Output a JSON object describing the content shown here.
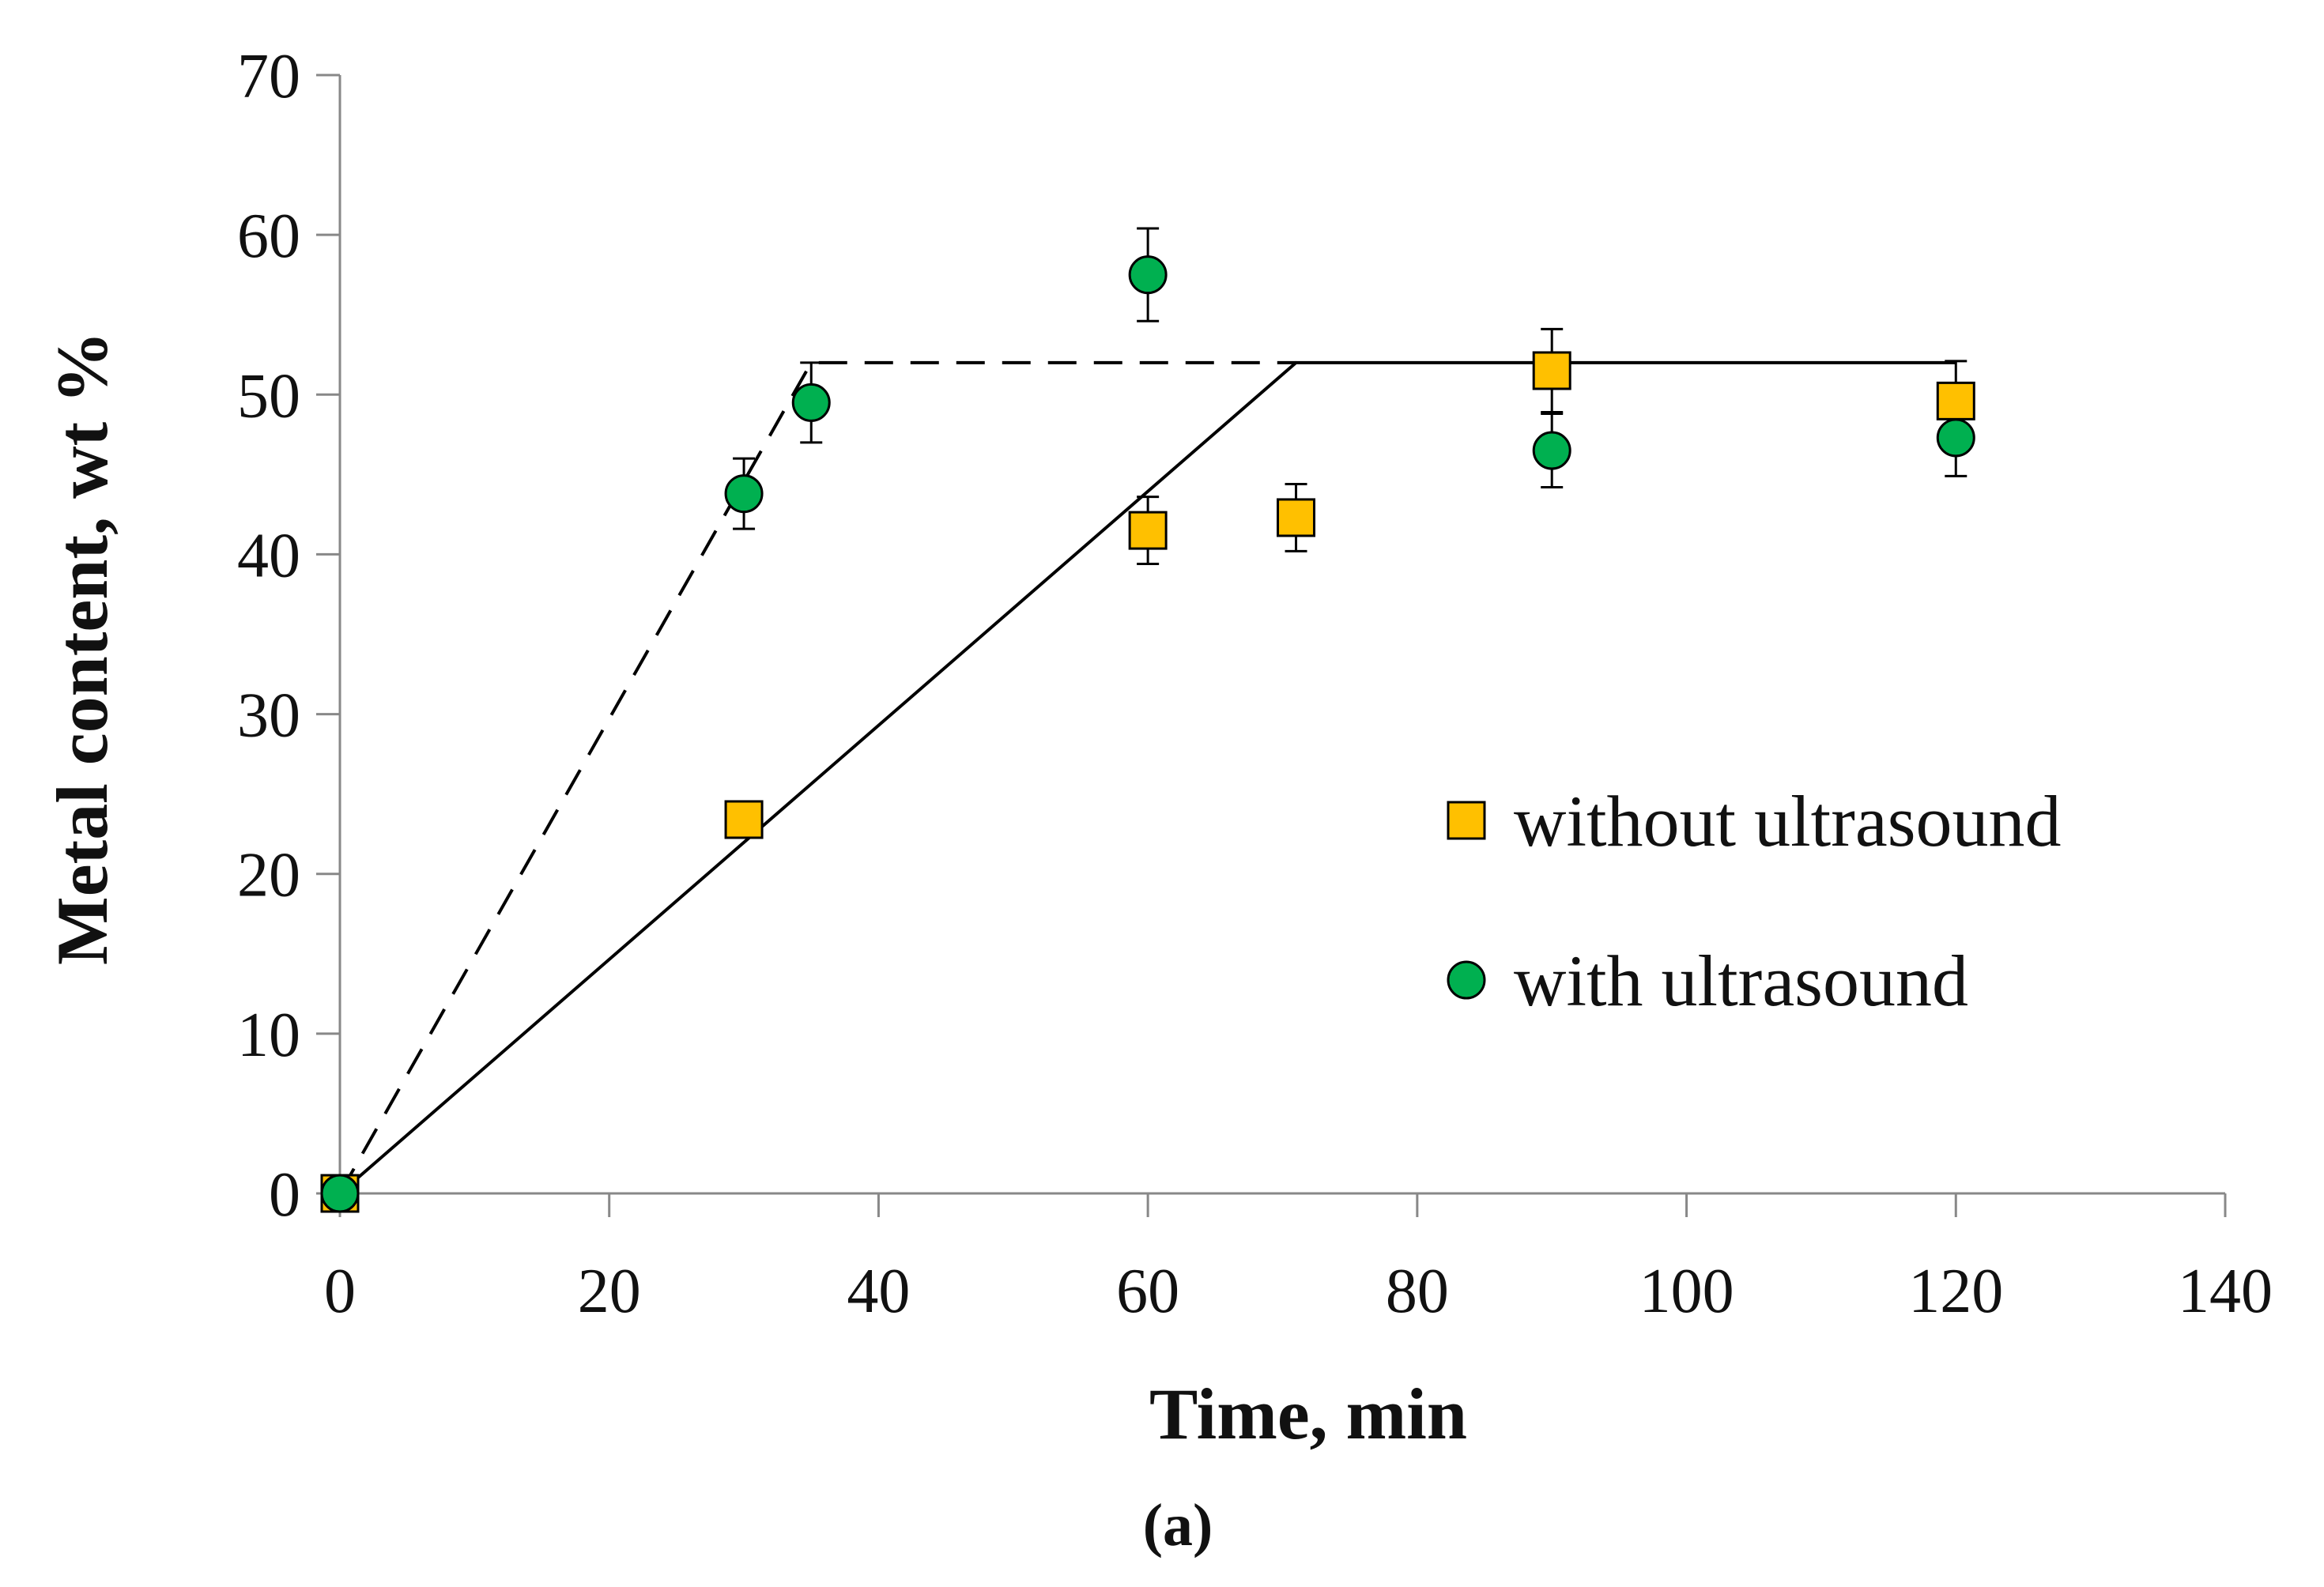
{
  "chart_data": {
    "type": "scatter",
    "title": "",
    "xlabel": "Time, min",
    "ylabel": "Metal content, wt %",
    "caption": "(a)",
    "xlim": [
      0,
      140
    ],
    "ylim": [
      0,
      70
    ],
    "xticks": [
      0,
      20,
      40,
      60,
      80,
      100,
      120,
      140
    ],
    "yticks": [
      0,
      10,
      20,
      30,
      40,
      50,
      60,
      70
    ],
    "grid": false,
    "legend_position": "right",
    "series": [
      {
        "name": "without ultrasound",
        "marker": "square",
        "color": "#FFC000",
        "points": [
          {
            "x": 0,
            "y": 0,
            "err": 0
          },
          {
            "x": 30,
            "y": 23.4,
            "err": 0
          },
          {
            "x": 60,
            "y": 41.5,
            "err": 2.1
          },
          {
            "x": 71,
            "y": 42.3,
            "err": 2.1
          },
          {
            "x": 90,
            "y": 51.5,
            "err": 2.6
          },
          {
            "x": 120,
            "y": 49.6,
            "err": 2.5
          }
        ]
      },
      {
        "name": "with ultrasound",
        "marker": "circle",
        "color": "#00B050",
        "points": [
          {
            "x": 0,
            "y": 0,
            "err": 0
          },
          {
            "x": 30,
            "y": 43.8,
            "err": 2.2
          },
          {
            "x": 35,
            "y": 49.5,
            "err": 2.5
          },
          {
            "x": 60,
            "y": 57.5,
            "err": 2.9
          },
          {
            "x": 90,
            "y": 46.5,
            "err": 2.3
          },
          {
            "x": 120,
            "y": 47.3,
            "err": 2.4
          }
        ]
      }
    ],
    "trend_lines": [
      {
        "name": "without ultrasound trend",
        "style": "solid",
        "points": [
          [
            0,
            0
          ],
          [
            71,
            52
          ],
          [
            120,
            52
          ]
        ]
      },
      {
        "name": "with ultrasound trend",
        "style": "dashed",
        "points": [
          [
            0,
            0
          ],
          [
            35,
            52
          ],
          [
            71,
            52
          ]
        ]
      }
    ]
  }
}
